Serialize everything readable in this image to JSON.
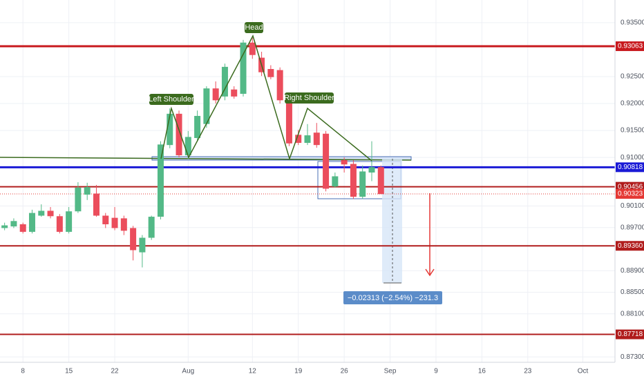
{
  "chart_data": {
    "type": "candlestick",
    "x": [
      0,
      1,
      2,
      3,
      4,
      5,
      6,
      7,
      8,
      9,
      10,
      11,
      12,
      13,
      14,
      15,
      16,
      17,
      18,
      19,
      20,
      21,
      22,
      23,
      24,
      25,
      26,
      27,
      28,
      29,
      30,
      31,
      32,
      33,
      34,
      35,
      36,
      37,
      38,
      39,
      40,
      41
    ],
    "open": [
      0.8969,
      0.8972,
      0.8976,
      0.8962,
      0.8992,
      0.9001,
      0.8991,
      0.8962,
      0.9,
      0.9031,
      0.9033,
      0.8992,
      0.8988,
      0.8987,
      0.8969,
      0.8924,
      0.8951,
      0.899,
      0.9123,
      0.9181,
      0.9104,
      0.9136,
      0.9162,
      0.9228,
      0.9213,
      0.9226,
      0.9218,
      0.9313,
      0.9285,
      0.9264,
      0.9262,
      0.9203,
      0.9142,
      0.9127,
      0.9146,
      0.9144,
      0.9046,
      0.9095,
      0.9088,
      0.9027,
      0.9072,
      0.9082
    ],
    "high": [
      0.8979,
      0.8987,
      0.8979,
      0.9003,
      0.9013,
      0.9008,
      0.8995,
      0.9008,
      0.9054,
      0.9053,
      0.9049,
      0.8997,
      0.9008,
      0.8992,
      0.8973,
      0.8956,
      0.8992,
      0.913,
      0.9191,
      0.9187,
      0.9149,
      0.9187,
      0.9232,
      0.9241,
      0.9274,
      0.9232,
      0.9318,
      0.9322,
      0.9296,
      0.9271,
      0.9267,
      0.9206,
      0.9151,
      0.9162,
      0.9164,
      0.9149,
      0.9072,
      0.91,
      0.9095,
      0.9085,
      0.913,
      0.9085
    ],
    "low": [
      0.8965,
      0.8969,
      0.8959,
      0.8959,
      0.899,
      0.8987,
      0.8959,
      0.8959,
      0.8997,
      0.9021,
      0.899,
      0.8969,
      0.8965,
      0.8956,
      0.8909,
      0.8896,
      0.8947,
      0.8985,
      0.9117,
      0.91,
      0.9097,
      0.913,
      0.9155,
      0.92,
      0.9206,
      0.9209,
      0.9213,
      0.9283,
      0.9251,
      0.9245,
      0.92,
      0.9121,
      0.9123,
      0.9123,
      0.9118,
      0.9037,
      0.9044,
      0.9072,
      0.9023,
      0.9023,
      0.9056,
      0.9033
    ],
    "close": [
      0.8974,
      0.8982,
      0.8962,
      0.8997,
      0.9001,
      0.8991,
      0.8962,
      0.9,
      0.9044,
      0.9045,
      0.8992,
      0.8976,
      0.8969,
      0.8964,
      0.8928,
      0.8951,
      0.899,
      0.9124,
      0.9181,
      0.9104,
      0.9138,
      0.9177,
      0.9228,
      0.9206,
      0.9268,
      0.9213,
      0.9313,
      0.929,
      0.9258,
      0.9249,
      0.9206,
      0.9126,
      0.9127,
      0.9141,
      0.9123,
      0.9042,
      0.9065,
      0.9087,
      0.9027,
      0.9074,
      0.9082,
      0.9032
    ],
    "up_color": "#53b987",
    "down_color": "#eb4d5c",
    "xlim": [
      -0.5,
      66.5
    ],
    "xticks": [
      {
        "value": 2,
        "label": "8"
      },
      {
        "value": 7,
        "label": "15"
      },
      {
        "value": 12,
        "label": "22"
      },
      {
        "value": 20,
        "label": "Aug"
      },
      {
        "value": 27,
        "label": "12"
      },
      {
        "value": 32,
        "label": "19"
      },
      {
        "value": 37,
        "label": "26"
      },
      {
        "value": 42,
        "label": "Sep"
      },
      {
        "value": 47,
        "label": "9"
      },
      {
        "value": 52,
        "label": "16"
      },
      {
        "value": 57,
        "label": "23"
      },
      {
        "value": 63,
        "label": "Oct"
      }
    ],
    "ylim": [
      0.872,
      0.9392
    ],
    "yticks": [
      {
        "value": 0.935,
        "label": "0.93500"
      },
      {
        "value": 0.925,
        "label": "0.92500"
      },
      {
        "value": 0.92,
        "label": "0.92000"
      },
      {
        "value": 0.915,
        "label": "0.91500"
      },
      {
        "value": 0.91,
        "label": "0.91000"
      },
      {
        "value": 0.901,
        "label": "0.90100"
      },
      {
        "value": 0.897,
        "label": "0.89700"
      },
      {
        "value": 0.889,
        "label": "0.88900"
      },
      {
        "value": 0.885,
        "label": "0.88500"
      },
      {
        "value": 0.881,
        "label": "0.88100"
      },
      {
        "value": 0.873,
        "label": "0.87300"
      }
    ],
    "grid": true,
    "levels": [
      {
        "value": 0.93063,
        "color": "#c8191e"
      },
      {
        "value": 0.90818,
        "color": "#1a1ad6"
      },
      {
        "value": 0.90456,
        "color": "#b01c1c"
      },
      {
        "value": 0.90323,
        "color": "#e53935"
      },
      {
        "value": 0.8936,
        "label": "0.89360",
        "color": "#b01c1c"
      },
      {
        "value": 0.87718,
        "color": "#b01c1c"
      }
    ],
    "annotations": [
      "Head",
      "Left Shoulder",
      "Right Shoulder"
    ],
    "measurement": "−0.02313 (−2.54%) −231.3"
  }
}
